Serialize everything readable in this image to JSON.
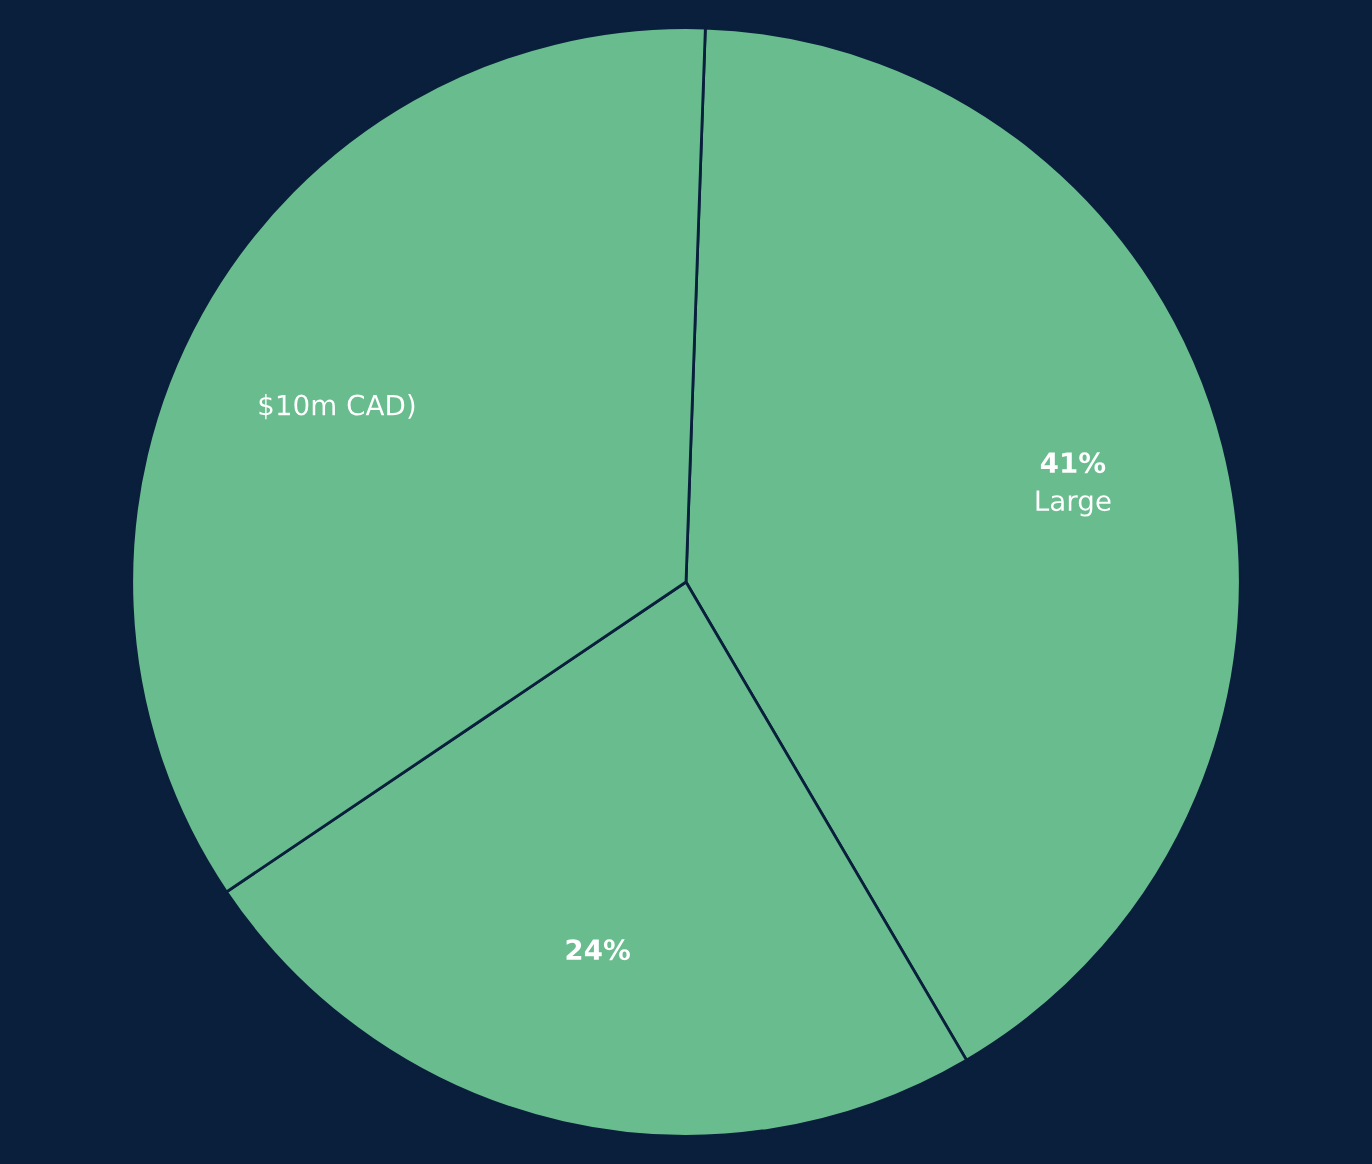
{
  "chart_data": {
    "type": "pie",
    "categories": [
      "Large",
      null,
      "$10m CAD)"
    ],
    "values": [
      41,
      24,
      35
    ],
    "value_labels": [
      "41%",
      "24%",
      null
    ],
    "colors": [
      "#69bc8e",
      "#69bc8e",
      "#69bc8e"
    ]
  }
}
